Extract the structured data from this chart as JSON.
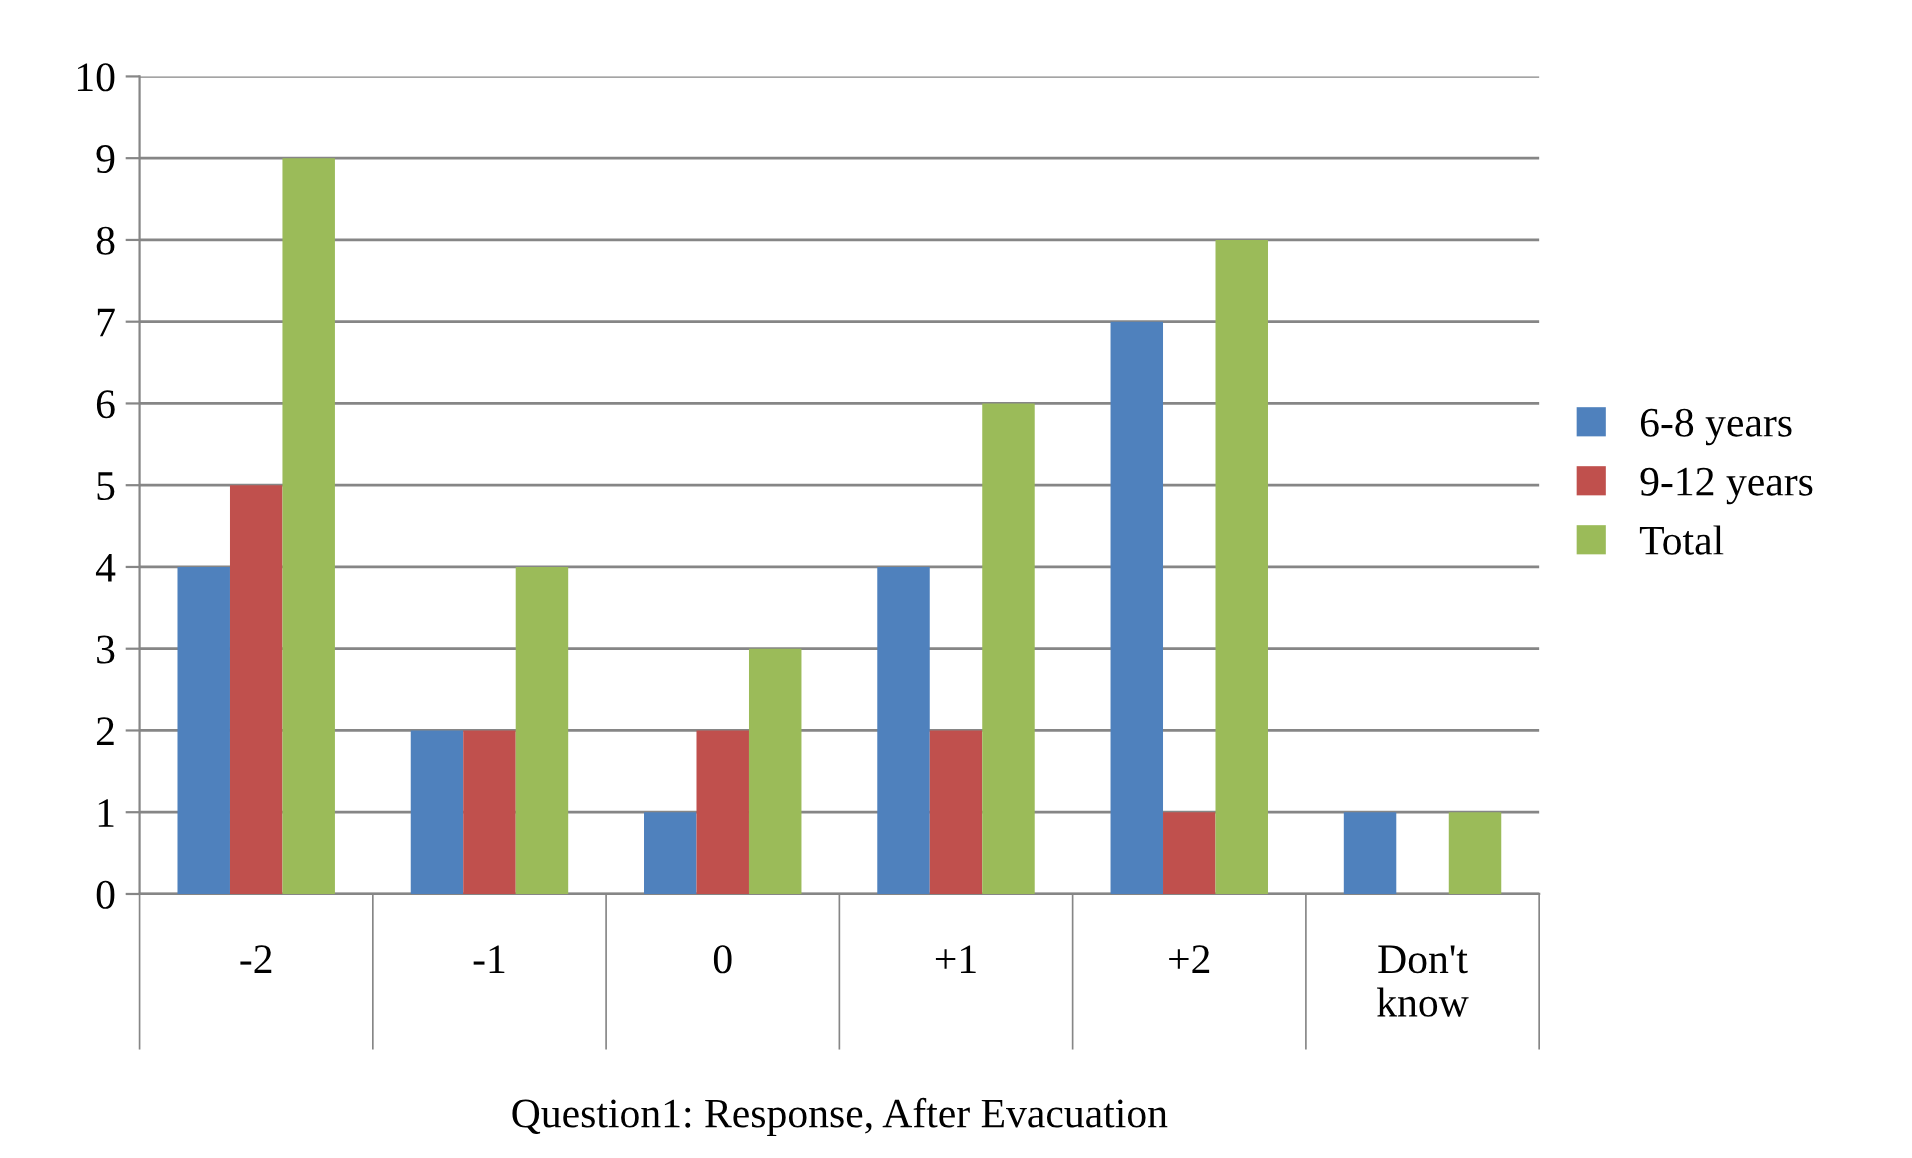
{
  "chart_data": {
    "type": "bar",
    "xlabel": "Question1: Response, After Evacuation",
    "categories": [
      "-2",
      "-1",
      "0",
      "+1",
      "+2",
      "Don't\nknow"
    ],
    "series": [
      {
        "name": "6-8 years",
        "color": "#4f81bd",
        "values": [
          4,
          2,
          1,
          4,
          7,
          1
        ]
      },
      {
        "name": "9-12 years",
        "color": "#c0504d",
        "values": [
          5,
          2,
          2,
          2,
          1,
          0
        ]
      },
      {
        "name": "Total",
        "color": "#9bbb59",
        "values": [
          9,
          4,
          3,
          6,
          8,
          1
        ]
      }
    ],
    "ylim": [
      0,
      10
    ],
    "yticks": [
      0,
      1,
      2,
      3,
      4,
      5,
      6,
      7,
      8,
      9,
      10
    ],
    "grid": "y",
    "legend": "right"
  }
}
